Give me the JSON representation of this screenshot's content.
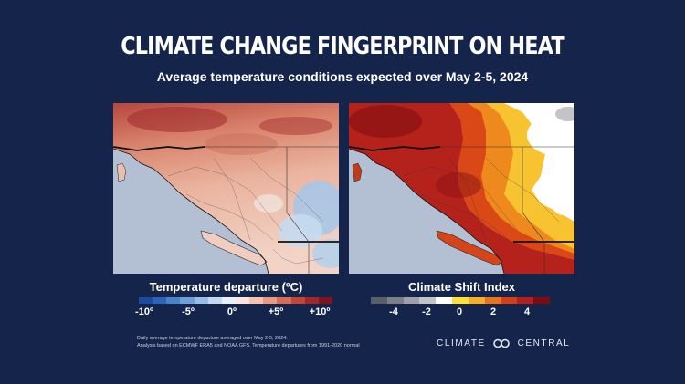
{
  "title": "Climate Change Fingerprint on Heat",
  "subtitle": "Average temperature conditions expected over May 2-5, 2024",
  "left_panel": {
    "legend_title": "Temperature departure (ºC)",
    "ticks": [
      "-10º",
      "-5º",
      "0º",
      "+5º",
      "+10º"
    ],
    "colors": [
      "#1b4aa0",
      "#2d63b8",
      "#4b81c9",
      "#6e9fd8",
      "#98bde5",
      "#c2d8ef",
      "#e7eff8",
      "#fbe6dd",
      "#f4c2ad",
      "#ea9a7f",
      "#d96c55",
      "#c44437",
      "#a2262a",
      "#7d1420"
    ]
  },
  "right_panel": {
    "legend_title": "Climate Shift Index",
    "ticks": [
      "-4",
      "-2",
      "0",
      "2",
      "4"
    ],
    "colors": [
      "#5a5e66",
      "#7b7f86",
      "#9ea1a7",
      "#c2c4c8",
      "#ffffff",
      "#ffe033",
      "#f6b021",
      "#ea7417",
      "#d63f15",
      "#b0201c",
      "#7c0d12"
    ]
  },
  "footnote": {
    "line1": "Daily average temperature departure averaged over May 2-5, 2024.",
    "line2": "Analysis based on ECMWF ERA5 and NOAA GFS. Temperature departures from 1991-2020 normal"
  },
  "brand": {
    "left": "CLIMATE",
    "right": "CENTRAL",
    "logo_icon": "climate-central-logo-icon"
  }
}
